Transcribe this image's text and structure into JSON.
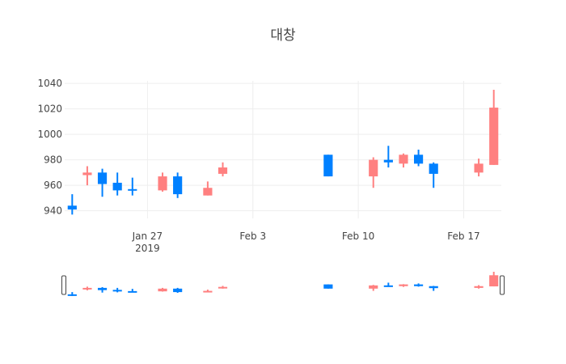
{
  "chart_data": {
    "type": "candlestick",
    "title": "대창",
    "ylim": [
      934,
      1042
    ],
    "xlim": [
      "2019-01-21T12:00",
      "2019-02-19T12:00"
    ],
    "y_ticks": [
      940,
      960,
      980,
      1000,
      1020,
      1040
    ],
    "x_ticks": [
      {
        "date": "2019-01-27",
        "label": "Jan 27",
        "sublabel": "2019"
      },
      {
        "date": "2019-02-03",
        "label": "Feb 3",
        "sublabel": ""
      },
      {
        "date": "2019-02-10",
        "label": "Feb 10",
        "sublabel": ""
      },
      {
        "date": "2019-02-17",
        "label": "Feb 17",
        "sublabel": ""
      }
    ],
    "grid": true,
    "rangeslider": true,
    "colors": {
      "increasing": "#ff8080",
      "decreasing": "#0080ff"
    },
    "candles": [
      {
        "date": "2019-01-22",
        "open": 944,
        "high": 953,
        "low": 937,
        "close": 941
      },
      {
        "date": "2019-01-23",
        "open": 968,
        "high": 975,
        "low": 960,
        "close": 970
      },
      {
        "date": "2019-01-24",
        "open": 970,
        "high": 973,
        "low": 951,
        "close": 961
      },
      {
        "date": "2019-01-25",
        "open": 962,
        "high": 970,
        "low": 952,
        "close": 956
      },
      {
        "date": "2019-01-26",
        "open": 957,
        "high": 966,
        "low": 952,
        "close": 956
      },
      {
        "date": "2019-01-28",
        "open": 956,
        "high": 970,
        "low": 955,
        "close": 967
      },
      {
        "date": "2019-01-29",
        "open": 967,
        "high": 970,
        "low": 950,
        "close": 953
      },
      {
        "date": "2019-01-31",
        "open": 952,
        "high": 963,
        "low": 952,
        "close": 958
      },
      {
        "date": "2019-02-01",
        "open": 969,
        "high": 978,
        "low": 967,
        "close": 974
      },
      {
        "date": "2019-02-08",
        "open": 984,
        "high": 984,
        "low": 967,
        "close": 967
      },
      {
        "date": "2019-02-11",
        "open": 967,
        "high": 982,
        "low": 958,
        "close": 980
      },
      {
        "date": "2019-02-12",
        "open": 980,
        "high": 991,
        "low": 974,
        "close": 978
      },
      {
        "date": "2019-02-13",
        "open": 977,
        "high": 985,
        "low": 974,
        "close": 984
      },
      {
        "date": "2019-02-14",
        "open": 984,
        "high": 988,
        "low": 975,
        "close": 977
      },
      {
        "date": "2019-02-15",
        "open": 977,
        "high": 978,
        "low": 958,
        "close": 969
      },
      {
        "date": "2019-02-18",
        "open": 970,
        "high": 981,
        "low": 967,
        "close": 977
      },
      {
        "date": "2019-02-19",
        "open": 976,
        "high": 1035,
        "low": 976,
        "close": 1021
      }
    ]
  }
}
